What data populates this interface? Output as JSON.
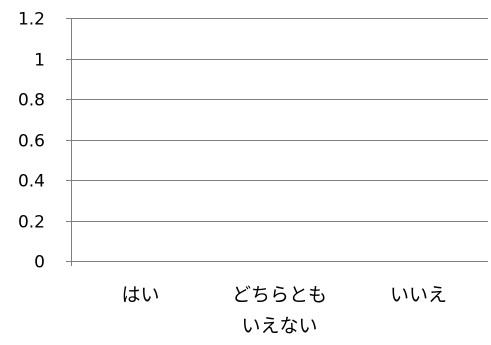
{
  "chart_data": {
    "type": "bar",
    "categories": [
      "はい",
      "どちらとも\nいえない",
      "いいえ"
    ],
    "values": [
      0,
      0,
      0
    ],
    "ylim": [
      0,
      1.2
    ],
    "yticks": [
      "0",
      "0.2",
      "0.4",
      "0.6",
      "0.8",
      "1",
      "1.2"
    ],
    "grid": true,
    "legend": "none",
    "colors": {
      "axis": "#7f7f7f",
      "grid": "#7f7f7f",
      "text": "#000000",
      "bar": "#4f81bd"
    }
  }
}
